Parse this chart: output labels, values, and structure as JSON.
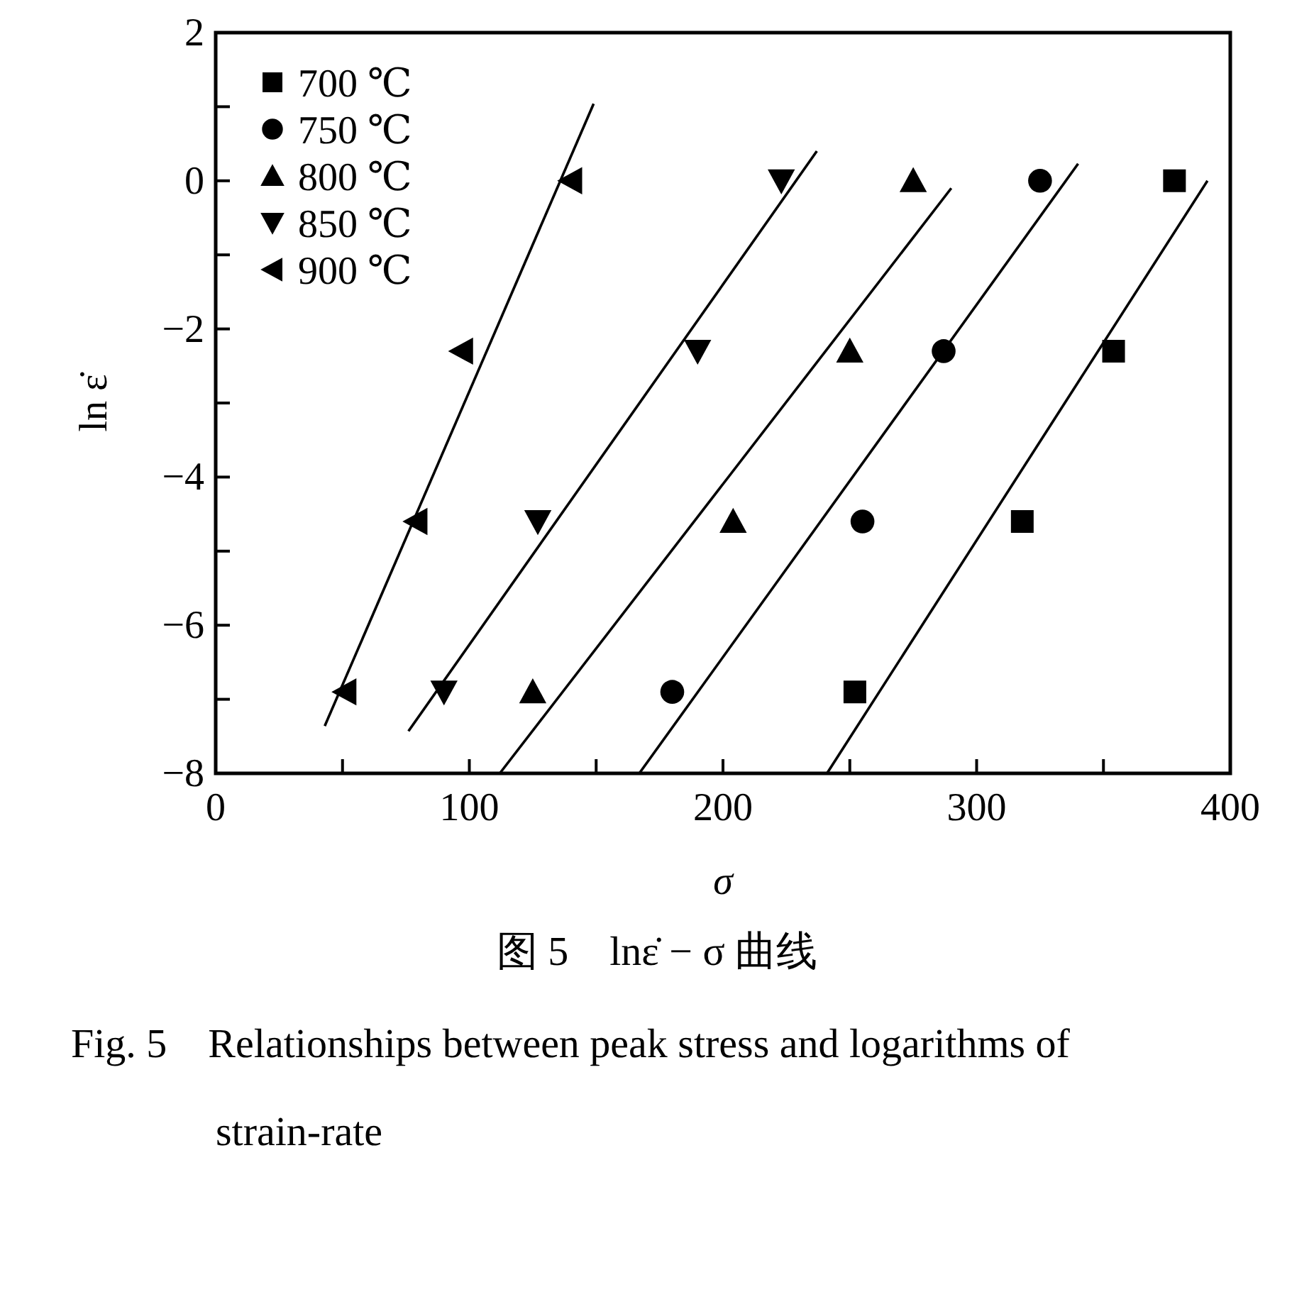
{
  "chart_data": {
    "type": "scatter",
    "title": "图 5　lnε̇ − σ 曲线",
    "annotations": [
      "Fig. 5　Relationships between peak stress and logarithms of strain-rate"
    ],
    "xlabel": "σ",
    "ylabel": "ln ε̇",
    "xlim": [
      0,
      400
    ],
    "ylim": [
      -8,
      2
    ],
    "xticks": [
      0,
      {
        "value": 50,
        "label": null
      },
      100,
      {
        "value": 150,
        "label": null
      },
      200,
      {
        "value": 250,
        "label": null
      },
      300,
      {
        "value": 350,
        "label": null
      },
      400
    ],
    "yticks": [
      -8,
      {
        "value": -7,
        "label": null
      },
      -6,
      {
        "value": -5,
        "label": null
      },
      -4,
      {
        "value": -3,
        "label": null
      },
      -2,
      {
        "value": -1,
        "label": null
      },
      0,
      {
        "value": 1,
        "label": null
      },
      2
    ],
    "legend": "top left",
    "grid": false,
    "series": [
      {
        "name": "700 ℃",
        "color": "#000000",
        "marker": "square",
        "x": [
          378,
          354,
          318,
          252
        ],
        "values": [
          0,
          -2.3,
          -4.6,
          -6.9
        ]
      },
      {
        "name": "750 ℃",
        "color": "#000000",
        "marker": "circle",
        "x": [
          325,
          287,
          255,
          180
        ],
        "values": [
          0,
          -2.3,
          -4.6,
          -6.9
        ]
      },
      {
        "name": "800 ℃",
        "color": "#000000",
        "marker": "triangle",
        "x": [
          275,
          250,
          204,
          125
        ],
        "values": [
          0,
          -2.3,
          -4.6,
          -6.9
        ]
      },
      {
        "name": "850 ℃",
        "color": "#000000",
        "marker": "triangle-down",
        "x": [
          223,
          190,
          127,
          90
        ],
        "values": [
          0,
          -2.3,
          -4.6,
          -6.9
        ]
      },
      {
        "name": "900 ℃",
        "color": "#000000",
        "marker": "triangle-left",
        "x": [
          140,
          97,
          79,
          51
        ],
        "values": [
          0,
          -2.3,
          -4.6,
          -6.9
        ]
      },
      {
        "type": "line",
        "color": "#000000",
        "x": [
          241,
          391
        ],
        "values": [
          -8,
          0
        ]
      },
      {
        "type": "line",
        "color": "#000000",
        "x": [
          167,
          340
        ],
        "values": [
          -8,
          0.23
        ]
      },
      {
        "type": "line",
        "color": "#000000",
        "x": [
          112,
          290
        ],
        "values": [
          -8,
          -0.1
        ]
      },
      {
        "type": "line",
        "color": "#000000",
        "x": [
          76,
          237
        ],
        "values": [
          -7.43,
          0.4
        ]
      },
      {
        "type": "line",
        "color": "#000000",
        "x": [
          43,
          149
        ],
        "values": [
          -7.36,
          1.04
        ]
      }
    ]
  }
}
